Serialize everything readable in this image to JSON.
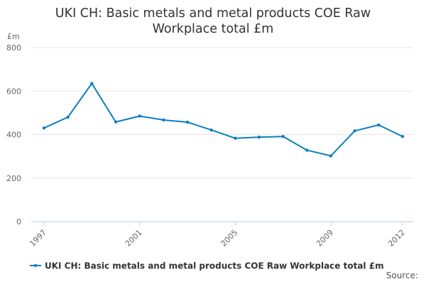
{
  "chart_data": {
    "type": "line",
    "title_lines": [
      "UKI CH: Basic metals and metal products COE Raw",
      "Workplace total £m"
    ],
    "ylabel": "£m",
    "ylim": [
      0,
      800
    ],
    "yticks": [
      "0",
      "200",
      "400",
      "600",
      "800"
    ],
    "xlim": [
      1997,
      2012
    ],
    "xticks": [
      "1997",
      "2001",
      "2005",
      "2009",
      "2012"
    ],
    "x": [
      1997,
      1998,
      1999,
      2000,
      2001,
      2002,
      2003,
      2004,
      2005,
      2006,
      2007,
      2008,
      2009,
      2010,
      2011,
      2012
    ],
    "series": [
      {
        "name": "UKI CH: Basic metals and metal products COE Raw Workplace total £m",
        "color": "#0c7fbf",
        "values": [
          430,
          480,
          635,
          458,
          485,
          467,
          457,
          421,
          383,
          388,
          391,
          328,
          302,
          417,
          444,
          391
        ]
      }
    ],
    "grid": true,
    "legend": "bottom"
  },
  "source_label": "Source:"
}
